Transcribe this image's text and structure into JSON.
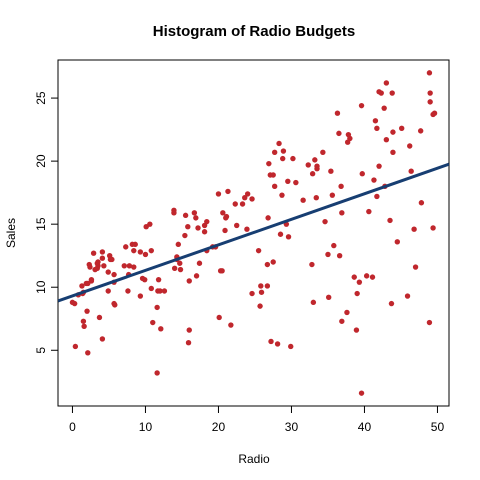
{
  "chart_data": {
    "type": "scatter",
    "title": "Histogram of Radio Budgets",
    "xlabel": "Radio",
    "ylabel": "Sales",
    "xlim": [
      -1.98,
      51.58
    ],
    "ylim": [
      0.58,
      28.02
    ],
    "xticks": [
      0,
      10,
      20,
      30,
      40,
      50
    ],
    "yticks": [
      5,
      10,
      15,
      20,
      25
    ],
    "color": "#c0272d",
    "line": {
      "intercept": 9.31,
      "slope": 0.2025,
      "color": "#173e72"
    },
    "x": [
      37.8,
      39.3,
      45.9,
      41.3,
      10.8,
      48.9,
      32.8,
      19.6,
      2.1,
      2.6,
      5.8,
      24,
      35.1,
      7.6,
      32.9,
      47.7,
      36.6,
      39.6,
      20.5,
      23.9,
      27.7,
      5.1,
      15.9,
      16.9,
      12.6,
      3.5,
      29.3,
      16.7,
      27.1,
      16,
      28.3,
      17.4,
      1.5,
      20,
      1.4,
      4.1,
      43.8,
      49.4,
      26.7,
      37.7,
      22.3,
      33.4,
      27.7,
      8.4,
      25.7,
      22.5,
      9.9,
      41.5,
      15.8,
      11.7,
      3.1,
      9.6,
      41.7,
      46.2,
      28.8,
      49.4,
      28.1,
      19.2,
      49.6,
      29.5,
      2,
      42.7,
      15.5,
      29.6,
      42.8,
      9.3,
      24.6,
      14.5,
      27.5,
      43.9,
      30.6,
      14.3,
      33,
      5.7,
      24.6,
      43.7,
      1.6,
      28.5,
      29.9,
      7.7,
      26.7,
      4.1,
      20.3,
      44.5,
      43,
      18.4,
      27.5,
      40.6,
      25.5,
      47.8,
      4.9,
      1.5,
      33.5,
      36.5,
      14,
      31.6,
      3.5,
      21,
      42.3,
      41.7,
      4.3,
      36.3,
      10.1,
      17.2,
      34.3,
      46.4,
      11,
      0.3,
      0.4,
      26.9,
      8.2,
      38,
      15.4,
      20.6,
      46.8,
      35,
      14.3,
      0.8,
      36.9,
      16,
      26.8,
      21.7,
      2.4,
      34.6,
      32.3,
      11.8,
      38.9,
      0,
      49,
      12,
      39.6,
      2.9,
      27.2,
      33.5,
      38.6,
      47,
      39,
      28.9,
      25.9,
      43.9,
      17,
      35.4,
      33.2,
      5.7,
      14.8,
      1.9,
      7.3,
      49,
      40.3,
      25.8,
      13.9,
      8.4,
      23.3,
      39.7,
      21.1,
      11.6,
      43.5,
      1.3,
      36.9,
      18.4,
      18.1,
      35.8,
      18.1,
      36.8,
      14.7,
      3.4,
      37.6,
      5.2,
      23.6,
      10.6,
      11.6,
      20.9,
      20.1,
      7.1,
      3.4,
      48.9,
      30.2,
      7.8,
      2.3,
      10,
      2.6,
      5.4,
      5.7,
      43,
      21.3,
      45.1,
      2.1,
      28.7,
      13.9,
      12.1,
      41.1,
      10.8,
      4.1,
      42,
      35.6,
      3.7,
      4.9,
      9.3,
      42,
      8.6
    ],
    "values": [
      22.1,
      10.4,
      9.3,
      18.5,
      12.9,
      7.2,
      11.8,
      13.2,
      4.8,
      10.6,
      8.6,
      17.4,
      9.2,
      9.7,
      19,
      22.4,
      12.5,
      24.4,
      11.3,
      14.6,
      18,
      12.5,
      5.6,
      15.5,
      9.7,
      12,
      15,
      15.9,
      18.9,
      10.5,
      21.4,
      11.9,
      9.6,
      17.4,
      9.5,
      12.8,
      25.4,
      14.7,
      10.1,
      21.5,
      16.6,
      17.1,
      20.7,
      12.9,
      8.5,
      14.9,
      10.6,
      23.2,
      14.8,
      9.7,
      11.4,
      10.7,
      22.6,
      21.2,
      20.2,
      23.7,
      5.5,
      13.2,
      23.8,
      18.4,
      8.1,
      24.2,
      15.7,
      14,
      18,
      9.3,
      9.5,
      13.4,
      18.9,
      22.3,
      18.3,
      12.4,
      8.8,
      11,
      17,
      8.7,
      6.9,
      14.2,
      5.3,
      11,
      11.8,
      12.3,
      11.3,
      13.6,
      21.7,
      15.2,
      12,
      16,
      12.9,
      16.7,
      11.2,
      7.3,
      19.4,
      22.2,
      11.5,
      16.9,
      11.7,
      15.5,
      25.4,
      17.2,
      11.7,
      23.8,
      14.8,
      14.7,
      20.7,
      19.2,
      7.2,
      8.7,
      5.3,
      19.8,
      13.4,
      21.8,
      14.1,
      15.9,
      14.6,
      12.6,
      12.2,
      9.4,
      15.9,
      6.6,
      15.5,
      7,
      11.6,
      15.2,
      19.7,
      10.6,
      6.6,
      8.8,
      24.7,
      9.7,
      1.6,
      12.7,
      5.7,
      19.6,
      10.8,
      11.6,
      9.5,
      20.8,
      9.6,
      20.7,
      10.9,
      19.2,
      20.1,
      10.4,
      11.4,
      10.3,
      13.2,
      25.4,
      10.9,
      10.1,
      16.1,
      11.6,
      16.6,
      19,
      15.6,
      3.2,
      15.3,
      10.1,
      7.3,
      12.9,
      14.4,
      13.3,
      14.9,
      18,
      11.9,
      11.9,
      8,
      12.2,
      17.1,
      15,
      8.4,
      14.5,
      7.6,
      11.7,
      11.5,
      27,
      20.2,
      11.7,
      11.8,
      12.6,
      10.5,
      12.2,
      8.7,
      26.2,
      17.6,
      22.6,
      10.3,
      17.3,
      15.9,
      6.7,
      10.8,
      9.9,
      5.9,
      19.6,
      17.3,
      7.6,
      9.7,
      12.8,
      25.5,
      13.4
    ]
  }
}
